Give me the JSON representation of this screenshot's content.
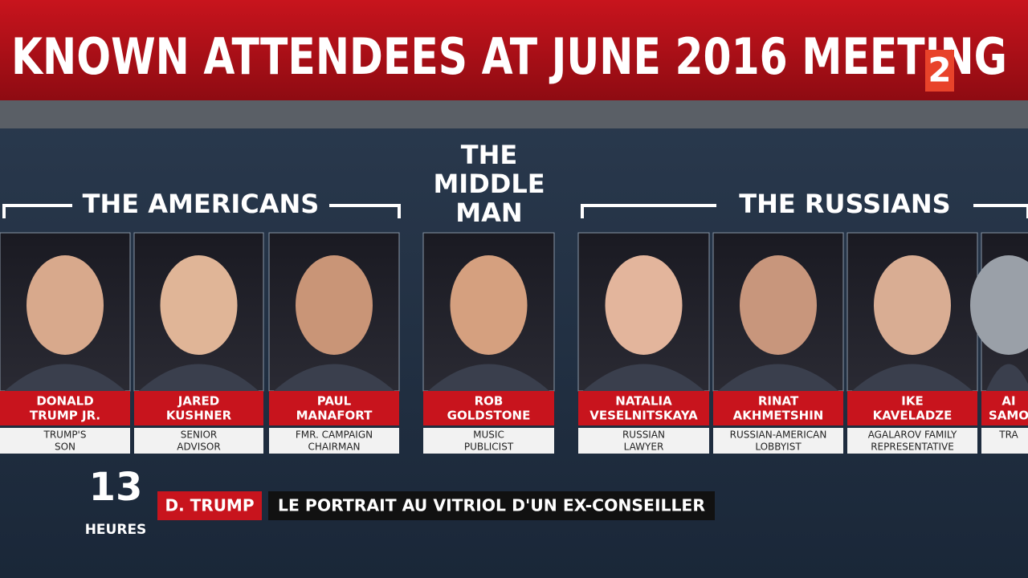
{
  "header": {
    "title": "KNOWN ATTENDEES AT JUNE 2016 MEETING",
    "channel_logo": "2"
  },
  "groups": [
    {
      "label": "THE AMERICANS"
    },
    {
      "label_lines": [
        "THE",
        "MIDDLE",
        "MAN"
      ]
    },
    {
      "label": "THE RUSSIANS"
    }
  ],
  "people": [
    {
      "name_lines": [
        "DONALD",
        "TRUMP JR."
      ],
      "role_lines": [
        "TRUMP'S",
        "SON"
      ]
    },
    {
      "name_lines": [
        "JARED",
        "KUSHNER"
      ],
      "role_lines": [
        "SENIOR",
        "ADVISOR"
      ]
    },
    {
      "name_lines": [
        "PAUL",
        "MANAFORT"
      ],
      "role_lines": [
        "FMR. CAMPAIGN",
        "CHAIRMAN"
      ]
    },
    {
      "name_lines": [
        "ROB",
        "GOLDSTONE"
      ],
      "role_lines": [
        "MUSIC",
        "PUBLICIST"
      ]
    },
    {
      "name_lines": [
        "NATALIA",
        "VESELNITSKAYA"
      ],
      "role_lines": [
        "RUSSIAN",
        "LAWYER"
      ]
    },
    {
      "name_lines": [
        "RINAT",
        "AKHMETSHIN"
      ],
      "role_lines": [
        "RUSSIAN-AMERICAN",
        "LOBBYIST"
      ]
    },
    {
      "name_lines": [
        "IKE",
        "KAVELADZE"
      ],
      "role_lines": [
        "AGALAROV FAMILY",
        "REPRESENTATIVE"
      ]
    },
    {
      "name_lines": [
        "AI",
        "SAMO"
      ],
      "role_lines": [
        "TRA"
      ]
    }
  ],
  "lower_third": {
    "edition_number": "13",
    "edition_label": "HEURES",
    "tag": "D. TRUMP",
    "headline": "LE PORTRAIT AU VITRIOL D'UN EX-CONSEILLER"
  }
}
